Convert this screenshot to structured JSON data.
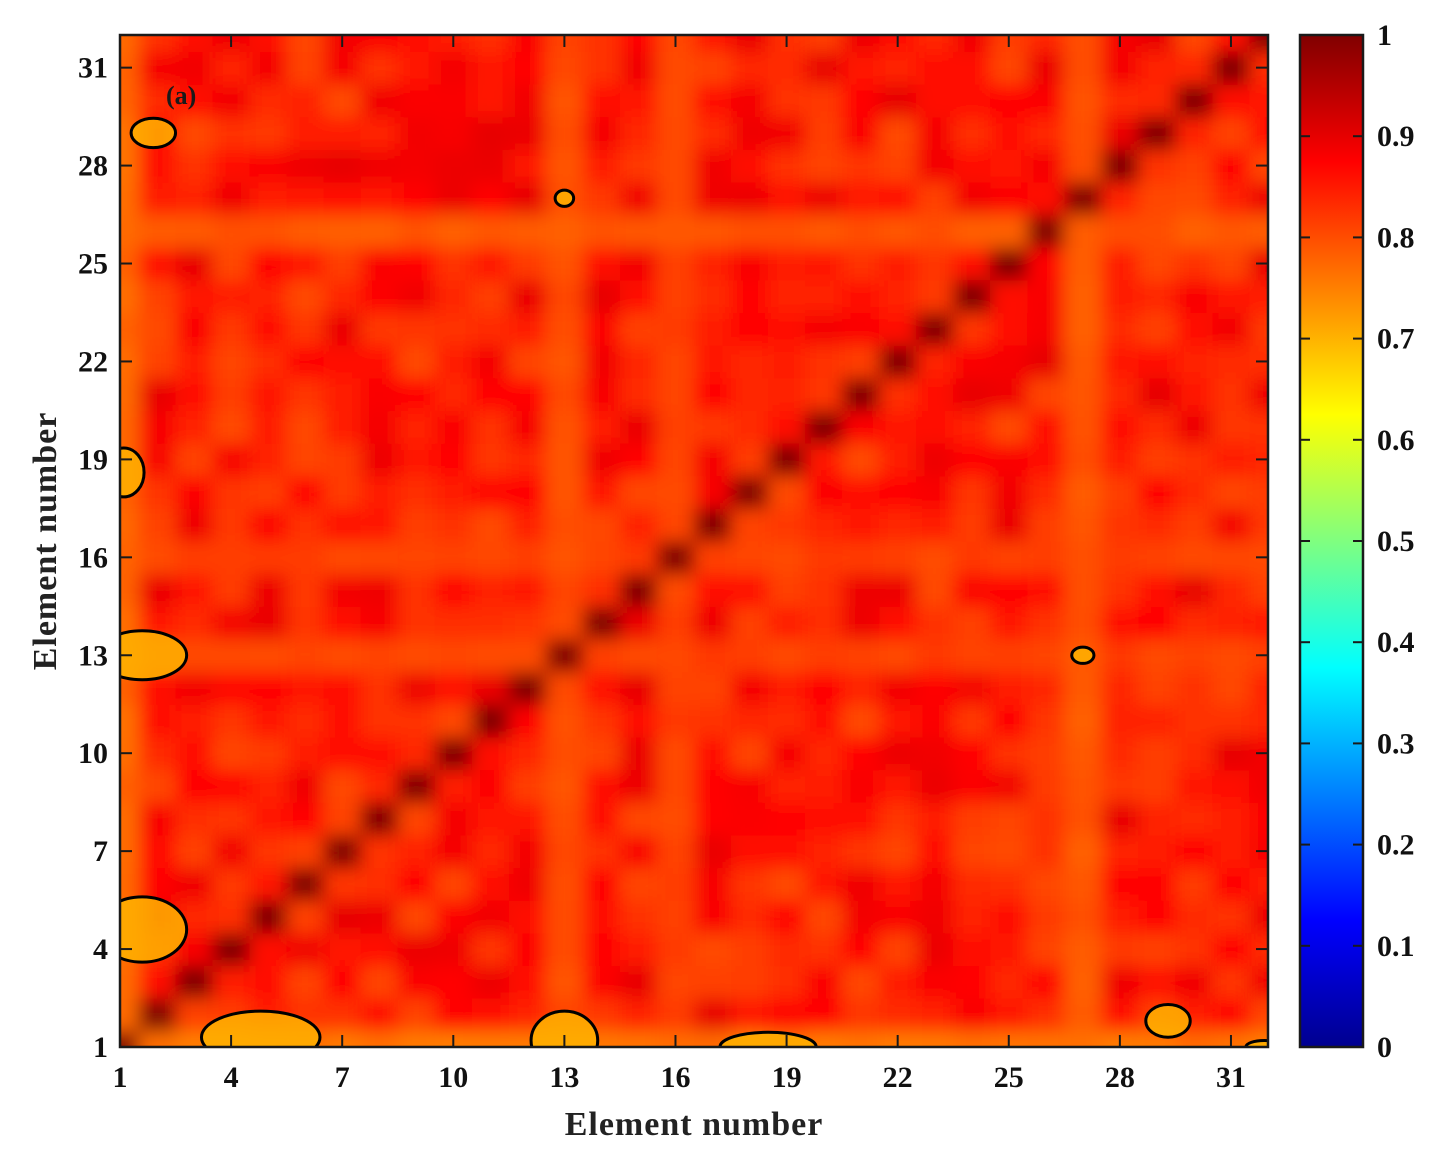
{
  "chart_data": {
    "type": "heatmap",
    "title": "",
    "panel_label": "(a)",
    "xlabel": "Element number",
    "ylabel": "Element number",
    "n": 32,
    "xlim": [
      1,
      32
    ],
    "ylim": [
      1,
      32
    ],
    "x_ticks": [
      1,
      4,
      7,
      10,
      13,
      16,
      19,
      22,
      25,
      28,
      31
    ],
    "y_ticks": [
      1,
      4,
      7,
      10,
      13,
      16,
      19,
      22,
      25,
      28,
      31
    ],
    "x_tick_labels": [
      "1",
      "4",
      "7",
      "10",
      "13",
      "16",
      "19",
      "22",
      "25",
      "28",
      "31"
    ],
    "y_tick_labels": [
      "1",
      "4",
      "7",
      "10",
      "13",
      "16",
      "19",
      "22",
      "25",
      "28",
      "31"
    ],
    "colorbar": {
      "range": [
        0,
        1
      ],
      "ticks": [
        0,
        0.1,
        0.2,
        0.3,
        0.4,
        0.5,
        0.6,
        0.7,
        0.8,
        0.9,
        1
      ],
      "tick_labels": [
        "0",
        "0.1",
        "0.2",
        "0.3",
        "0.4",
        "0.5",
        "0.6",
        "0.7",
        "0.8",
        "0.9",
        "1"
      ],
      "colormap": "jet"
    },
    "diagonal_value": 1.0,
    "typical_off_diagonal_range": [
      0.75,
      0.9
    ],
    "low_bands": [
      {
        "axis": "row",
        "element": 1,
        "value": 0.75
      },
      {
        "axis": "row",
        "element": 13,
        "value": 0.8
      },
      {
        "axis": "row",
        "element": 16,
        "value": 0.8
      },
      {
        "axis": "row",
        "element": 26,
        "value": 0.78
      },
      {
        "axis": "col",
        "element": 1,
        "value": 0.76
      },
      {
        "axis": "col",
        "element": 13,
        "value": 0.79
      },
      {
        "axis": "col",
        "element": 16,
        "value": 0.8
      },
      {
        "axis": "col",
        "element": 27,
        "value": 0.78
      }
    ],
    "contour_level": 0.7,
    "contour_regions": [
      {
        "x": 1.9,
        "y": 29.0,
        "rx": 0.6,
        "ry": 0.45
      },
      {
        "x": 13.0,
        "y": 27.0,
        "rx": 0.25,
        "ry": 0.25
      },
      {
        "x": 1.1,
        "y": 18.6,
        "rx": 0.55,
        "ry": 0.75
      },
      {
        "x": 1.6,
        "y": 13.0,
        "rx": 1.2,
        "ry": 0.75
      },
      {
        "x": 27.0,
        "y": 13.0,
        "rx": 0.3,
        "ry": 0.25
      },
      {
        "x": 1.6,
        "y": 4.6,
        "rx": 1.2,
        "ry": 1.0
      },
      {
        "x": 4.8,
        "y": 1.3,
        "rx": 1.6,
        "ry": 0.8
      },
      {
        "x": 13.0,
        "y": 1.2,
        "rx": 0.9,
        "ry": 0.9
      },
      {
        "x": 18.5,
        "y": 1.0,
        "rx": 1.3,
        "ry": 0.45
      },
      {
        "x": 29.3,
        "y": 1.8,
        "rx": 0.6,
        "ry": 0.5
      },
      {
        "x": 31.9,
        "y": 1.0,
        "rx": 0.5,
        "ry": 0.2
      }
    ]
  },
  "colors": {
    "frame": "#1a1a1a",
    "contour": "#000000",
    "background": "#ffffff"
  }
}
